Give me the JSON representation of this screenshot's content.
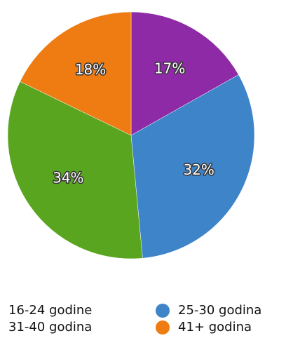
{
  "chart_data": {
    "type": "pie",
    "categories": [
      "16-24 godine",
      "25-30 godina",
      "31-40 godina",
      "41+ godina"
    ],
    "values": [
      17,
      32,
      34,
      18
    ],
    "value_labels": [
      "17%",
      "32%",
      "34%",
      "18%"
    ],
    "colors": [
      "#8e2aa6",
      "#3d84c8",
      "#5aa51f",
      "#ee7c12"
    ]
  }
}
